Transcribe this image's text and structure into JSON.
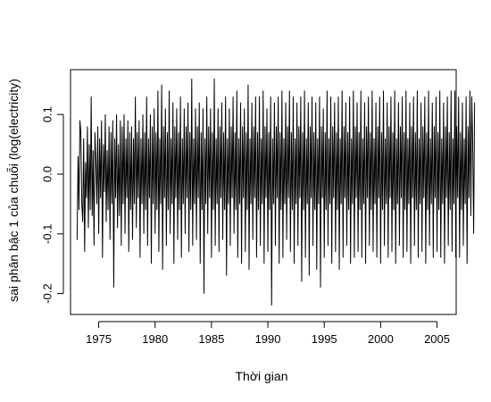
{
  "chart_data": {
    "type": "line",
    "title": "",
    "xlabel": "Thời gian",
    "ylabel": "sai phân bậc 1 của chuỗi (log(electricity)",
    "xlim": [
      1972.5,
      2006.7
    ],
    "ylim": [
      -0.235,
      0.175
    ],
    "x_ticks": [
      1975,
      1980,
      1985,
      1990,
      1995,
      2000,
      2005
    ],
    "x_tick_labels": [
      "1975",
      "1980",
      "1985",
      "1990",
      "1995",
      "2000",
      "2005"
    ],
    "y_ticks": [
      -0.2,
      -0.1,
      0.0,
      0.1
    ],
    "y_tick_labels": [
      "-0.2",
      "-0.1",
      "0.0",
      "0.1"
    ],
    "grid": false,
    "legend": "none",
    "line_color": "#000000",
    "series": [
      {
        "start": 1973.083,
        "frequency": 12,
        "values": [
          -0.11,
          0.03,
          -0.06,
          0.09,
          0.07,
          -0.05,
          -0.08,
          0.06,
          -0.13,
          0.02,
          -0.04,
          0.08,
          -0.09,
          0.05,
          -0.06,
          0.13,
          -0.07,
          0.04,
          -0.12,
          0.07,
          0.02,
          -0.05,
          0.08,
          -0.1,
          0.06,
          -0.04,
          0.09,
          -0.14,
          0.05,
          -0.03,
          0.1,
          -0.08,
          0.04,
          -0.06,
          0.08,
          -0.11,
          0.07,
          -0.05,
          0.09,
          -0.19,
          0.06,
          -0.04,
          0.1,
          -0.09,
          0.05,
          -0.07,
          0.09,
          -0.12,
          0.08,
          -0.05,
          0.1,
          -0.1,
          0.06,
          -0.04,
          0.09,
          -0.13,
          0.07,
          -0.06,
          0.08,
          -0.11,
          0.06,
          -0.05,
          0.13,
          -0.09,
          0.07,
          -0.04,
          0.09,
          -0.14,
          0.06,
          -0.05,
          0.1,
          -0.1,
          0.07,
          -0.06,
          0.13,
          -0.12,
          0.06,
          -0.04,
          0.1,
          -0.15,
          0.08,
          -0.05,
          0.11,
          -0.1,
          0.07,
          -0.06,
          0.14,
          -0.13,
          0.06,
          -0.05,
          0.15,
          -0.16,
          0.08,
          -0.04,
          0.11,
          -0.12,
          0.07,
          -0.06,
          0.14,
          -0.1,
          0.06,
          -0.05,
          0.12,
          -0.15,
          0.08,
          -0.04,
          0.11,
          -0.11,
          0.07,
          -0.06,
          0.13,
          -0.14,
          0.06,
          -0.05,
          0.11,
          -0.1,
          0.08,
          -0.04,
          0.12,
          -0.13,
          0.07,
          -0.06,
          0.16,
          -0.12,
          0.06,
          -0.05,
          0.11,
          -0.11,
          0.08,
          -0.04,
          0.12,
          -0.15,
          0.07,
          -0.06,
          0.11,
          -0.2,
          0.06,
          -0.05,
          0.13,
          -0.1,
          0.08,
          -0.04,
          0.11,
          -0.14,
          0.07,
          -0.06,
          0.16,
          -0.12,
          0.06,
          -0.05,
          0.11,
          -0.13,
          0.08,
          -0.04,
          0.12,
          -0.11,
          0.07,
          -0.06,
          0.13,
          -0.17,
          0.06,
          -0.05,
          0.11,
          -0.12,
          0.08,
          -0.04,
          0.13,
          -0.1,
          0.07,
          -0.06,
          0.14,
          -0.14,
          0.06,
          -0.05,
          0.12,
          -0.15,
          0.08,
          -0.04,
          0.11,
          -0.13,
          0.07,
          -0.06,
          0.15,
          -0.16,
          0.06,
          -0.05,
          0.12,
          -0.11,
          0.08,
          -0.04,
          0.13,
          -0.14,
          0.07,
          -0.06,
          0.13,
          -0.12,
          0.06,
          -0.05,
          0.14,
          -0.15,
          0.08,
          -0.04,
          0.11,
          -0.13,
          0.07,
          -0.06,
          0.13,
          -0.22,
          0.06,
          -0.05,
          0.12,
          -0.12,
          0.08,
          -0.04,
          0.13,
          -0.15,
          0.07,
          -0.06,
          0.14,
          -0.14,
          0.06,
          -0.05,
          0.12,
          -0.11,
          0.08,
          -0.04,
          0.14,
          -0.13,
          0.07,
          -0.06,
          0.13,
          -0.15,
          0.06,
          -0.05,
          0.12,
          -0.12,
          0.08,
          -0.04,
          0.13,
          -0.18,
          0.07,
          -0.06,
          0.14,
          -0.14,
          0.06,
          -0.05,
          0.12,
          -0.17,
          0.08,
          -0.04,
          0.13,
          -0.12,
          0.07,
          -0.06,
          0.12,
          -0.16,
          0.06,
          -0.05,
          0.13,
          -0.19,
          0.08,
          -0.04,
          0.11,
          -0.14,
          0.07,
          -0.06,
          0.14,
          -0.12,
          0.06,
          -0.05,
          0.13,
          -0.15,
          0.08,
          -0.04,
          0.12,
          -0.13,
          0.07,
          -0.06,
          0.13,
          -0.16,
          0.06,
          -0.05,
          0.14,
          -0.14,
          0.08,
          -0.04,
          0.12,
          -0.12,
          0.07,
          -0.06,
          0.13,
          -0.15,
          0.06,
          -0.05,
          0.14,
          -0.14,
          0.08,
          -0.04,
          0.12,
          -0.13,
          0.07,
          -0.06,
          0.14,
          -0.14,
          0.06,
          -0.05,
          0.12,
          -0.15,
          0.08,
          -0.04,
          0.13,
          -0.12,
          0.07,
          -0.06,
          0.14,
          -0.13,
          0.06,
          -0.05,
          0.12,
          -0.14,
          0.08,
          -0.04,
          0.13,
          -0.15,
          0.07,
          -0.06,
          0.14,
          -0.12,
          0.06,
          -0.05,
          0.12,
          -0.14,
          0.08,
          -0.04,
          0.13,
          -0.13,
          0.07,
          -0.06,
          0.14,
          -0.15,
          0.06,
          -0.05,
          0.12,
          -0.12,
          0.08,
          -0.04,
          0.13,
          -0.14,
          0.07,
          -0.06,
          0.14,
          -0.13,
          0.06,
          -0.05,
          0.12,
          -0.15,
          0.08,
          -0.04,
          0.13,
          -0.12,
          0.07,
          -0.06,
          0.14,
          -0.14,
          0.06,
          -0.05,
          0.12,
          -0.13,
          0.08,
          -0.04,
          0.13,
          -0.15,
          0.07,
          -0.06,
          0.14,
          -0.12,
          0.06,
          -0.05,
          0.12,
          -0.14,
          0.08,
          -0.04,
          0.13,
          -0.13,
          0.07,
          -0.06,
          0.14,
          -0.14,
          0.06,
          -0.05,
          0.12,
          -0.15,
          0.08,
          -0.04,
          0.13,
          -0.12,
          0.07,
          -0.06,
          0.14,
          -0.13,
          0.06,
          -0.05,
          0.14,
          -0.14,
          0.08,
          -0.04,
          0.13,
          -0.14,
          0.07,
          -0.06,
          0.12,
          -0.12,
          0.06,
          -0.05,
          0.13,
          -0.15,
          0.08,
          -0.04,
          0.14,
          -0.07,
          0.13,
          0.05,
          -0.1,
          0.12
        ]
      }
    ]
  }
}
